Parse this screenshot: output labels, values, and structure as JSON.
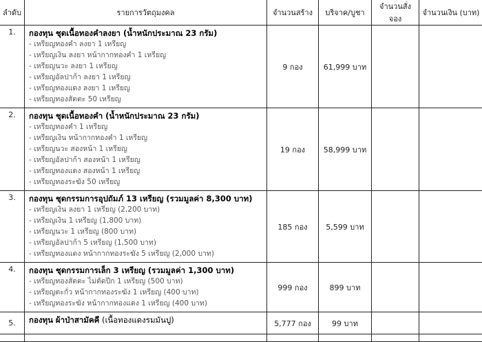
{
  "headers": [
    "ลำดับ",
    "รายการวัตถุมงคล",
    "จำนวนสร้าง",
    "บริจาค/บูชา",
    "จำนวนสั่งจอง",
    "จำนวนเงิน (บาท)"
  ],
  "rows": [
    {
      "no": "1.",
      "title": "กองทุน ชุดเนื้อทองคำลงยา (น้ำหนักประมาณ 23 กรัม)",
      "note": "",
      "items": [
        "- เหรียญทองคำ ลงยา 1 เหรียญ",
        "- เหรียญเงิน ลงยา หน้ากากทองคำ 1 เหรียญ",
        "- เหรียญนวะ ลงยา 1 เหรียญ",
        "- เหรียญอัลปาก้า ลงยา 1 เหรียญ",
        "- เหรียญทองแดง ลงยา 1 เหรียญ",
        "- เหรียญทองสัตตะ 50 เหรียญ"
      ],
      "qty": "9  กอง",
      "price": "61,999  บาท",
      "reserve": "",
      "amount": ""
    },
    {
      "no": "2.",
      "title": "กองทุน ชุดเนื้อทองคำ (น้ำหนักประมาณ 23 กรัม)",
      "note": "",
      "items": [
        "- เหรียญทองคำ 1 เหรียญ",
        "- เหรียญเงิน หน้ากากทองคำ 1 เหรียญ",
        "- เหรียญนวะ สองหน้า 1 เหรียญ",
        "- เหรียญอัลปาก้า สองหน้า 1 เหรียญ",
        "- เหรียญทองแดง สองหน้า 1 เหรียญ",
        "- เหรียญทองระฆัง 50 เหรียญ"
      ],
      "qty": "19  กอง",
      "price": "58,999  บาท",
      "reserve": "",
      "amount": ""
    },
    {
      "no": "3.",
      "title": "กองทุน ชุดกรรมการอุปถัมภ์ 13 เหรียญ (รวมมูลค่า 8,300 บาท)",
      "note": "",
      "items": [
        "- เหรียญเงิน ลงยา 1 เหรียญ (2,200 บาท)",
        "- เหรียญเงิน 1 เหรียญ (1,800 บาท)",
        "- เหรียญนวะ 1 เหรียญ (800 บาท)",
        "- เหรียญอัลปาก้า 5 เหรียญ (1,500 บาท)",
        "- เหรียญทองแดง หน้ากากทองระฆัง 5 เหรียญ (2,000 บาท)"
      ],
      "qty": "185  กอง",
      "price": "5,599  บาท",
      "reserve": "",
      "amount": ""
    },
    {
      "no": "4.",
      "title": "กองทุน ชุดกรรมการเล็ก 3 เหรียญ (รวมมูลค่า 1,300 บาท)",
      "note": "",
      "items": [
        "- เหรียญทองสัตตะ ไม่ตัดปีก 1 เหรียญ (500 บาท)",
        "- เหรียญตะกั่ว หน้ากากทองระฆัง 1 เหรียญ (400 บาท)",
        "- เหรียญทองระฆัง หน้ากากทองแดง 1 เหรียญ (400 บาท)"
      ],
      "qty": "999  กอง",
      "price": "899  บาท",
      "reserve": "",
      "amount": ""
    },
    {
      "no": "5.",
      "title": "กองทุน ผ้าป่าสามัคคี",
      "note": " (เนื้อทองแดงรมมันปู)",
      "items": [],
      "qty": "5,777  กอง",
      "price": "99  บาท",
      "reserve": "",
      "amount": ""
    }
  ]
}
